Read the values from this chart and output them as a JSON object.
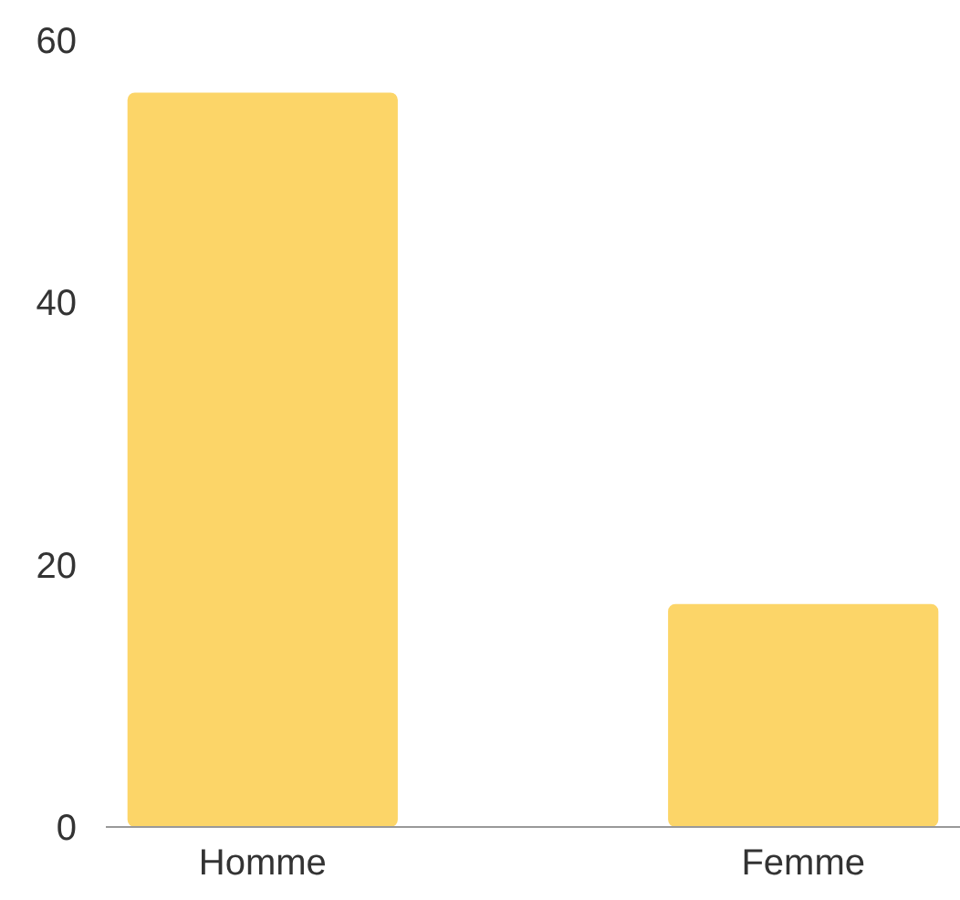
{
  "chart_data": {
    "type": "bar",
    "categories": [
      "Homme",
      "Femme"
    ],
    "values": [
      56,
      17
    ],
    "color": "#fcd568",
    "ylim": [
      0,
      60
    ],
    "yticks": [
      0,
      20,
      40,
      60
    ],
    "grid": false
  }
}
